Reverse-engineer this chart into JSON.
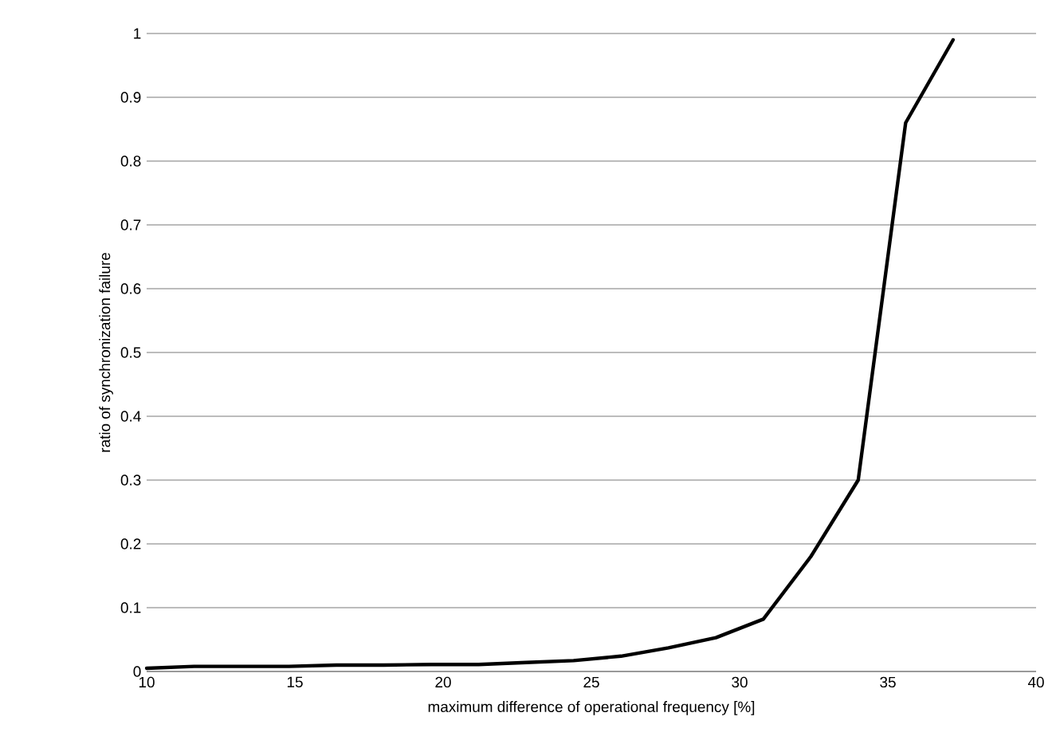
{
  "chart_data": {
    "type": "line",
    "xlabel": "maximum difference of operational frequency [%]",
    "ylabel": "ratio of synchronization failure",
    "x": [
      10,
      11.6,
      13.2,
      14.8,
      16.4,
      18,
      19.6,
      21.2,
      22.8,
      24.4,
      26,
      27.6,
      29.2,
      30.8,
      32.4,
      34,
      35.6,
      37.2
    ],
    "series": [
      {
        "color": "#000000",
        "values": [
          0.005,
          0.008,
          0.008,
          0.008,
          0.01,
          0.01,
          0.011,
          0.011,
          0.014,
          0.017,
          0.024,
          0.037,
          0.053,
          0.082,
          0.18,
          0.3,
          0.86,
          0.99
        ]
      }
    ],
    "xlim": [
      10,
      40
    ],
    "xticks": [
      10,
      15,
      20,
      25,
      30,
      35,
      40
    ],
    "ylim": [
      0,
      1
    ],
    "yticks": [
      0,
      0.1,
      0.2,
      0.3,
      0.4,
      0.5,
      0.6,
      0.7,
      0.8,
      0.9,
      1
    ],
    "grid": "y",
    "marker": "none",
    "line_style": "solid"
  }
}
